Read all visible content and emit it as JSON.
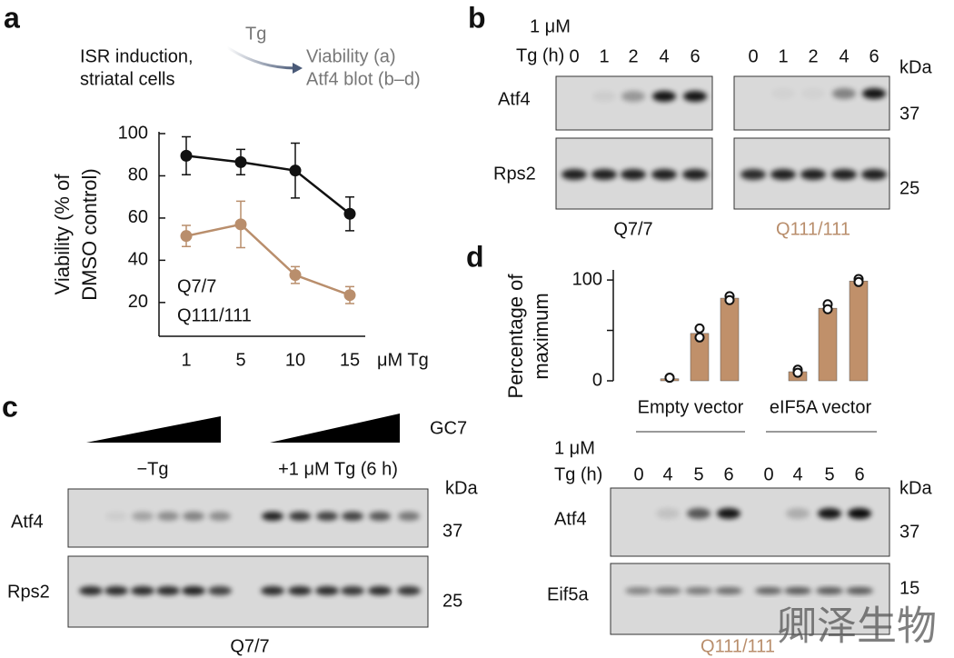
{
  "panel_a": {
    "letter": "a",
    "schematic": {
      "lines": [
        "ISR induction,",
        "striatal cells"
      ],
      "drug": "Tg",
      "outputs": [
        "Viability (a)",
        "Atf4 blot (b–d)"
      ]
    }
  },
  "chart_data": [
    {
      "type": "line",
      "categories": [
        "1",
        "5",
        "10",
        "15"
      ],
      "x_label": "μM Tg",
      "y_label": [
        "Viability (% of",
        "DMSO control)"
      ],
      "ylim": [
        4,
        100
      ],
      "yticks": [
        20,
        40,
        60,
        80,
        100
      ],
      "series": [
        {
          "name": "Q7/7",
          "color": "#111111",
          "values": [
            89.5,
            86.5,
            82.5,
            62
          ],
          "errors": [
            9,
            6,
            13,
            8
          ]
        },
        {
          "name": "Q111/111",
          "color": "#b98e6c",
          "values": [
            51.5,
            57,
            33,
            23.5
          ],
          "errors": [
            5,
            11,
            4,
            4
          ]
        }
      ]
    },
    {
      "type": "bar",
      "y_label": [
        "Percentage of",
        "maximum"
      ],
      "ylim": [
        0,
        110
      ],
      "yticks": [
        0,
        100
      ],
      "yminor": [
        50
      ],
      "groups": [
        "Empty vector",
        "eIF5A vector"
      ],
      "color": "#c0906a",
      "values": [
        [
          2,
          47,
          82
        ],
        [
          9,
          72,
          99
        ]
      ],
      "points": [
        [
          [
            3,
            3
          ],
          [
            52,
            43
          ],
          [
            84,
            80
          ]
        ],
        [
          [
            11,
            8
          ],
          [
            76,
            71
          ],
          [
            101,
            98
          ]
        ]
      ]
    }
  ],
  "panel_b": {
    "letter": "b",
    "conc": "1 μM",
    "time_label": "Tg (h)",
    "lanes": [
      [
        "0",
        "1",
        "2",
        "4",
        "6"
      ],
      [
        "0",
        "1",
        "2",
        "4",
        "6"
      ]
    ],
    "unit": "kDa",
    "rows": [
      {
        "name": "Atf4",
        "kda": "37"
      },
      {
        "name": "Rps2",
        "kda": "25"
      }
    ],
    "genotypes": [
      "Q7/7",
      "Q111/111"
    ]
  },
  "panel_c": {
    "letter": "c",
    "treatment": "GC7",
    "conditions": [
      "−Tg",
      "+1 μM Tg (6 h)"
    ],
    "unit": "kDa",
    "rows": [
      {
        "name": "Atf4",
        "kda": "37"
      },
      {
        "name": "Rps2",
        "kda": "25"
      }
    ],
    "genotype": "Q7/7"
  },
  "panel_d": {
    "letter": "d",
    "conc": "1 μM",
    "time_label": "Tg (h)",
    "lanes": [
      "0",
      "4",
      "5",
      "6",
      "0",
      "4",
      "5",
      "6"
    ],
    "unit": "kDa",
    "rows": [
      {
        "name": "Atf4",
        "kda": "37"
      },
      {
        "name": "Eif5a",
        "kda": "15"
      }
    ],
    "genotype": "Q111/111"
  },
  "watermark": "卿泽生物"
}
